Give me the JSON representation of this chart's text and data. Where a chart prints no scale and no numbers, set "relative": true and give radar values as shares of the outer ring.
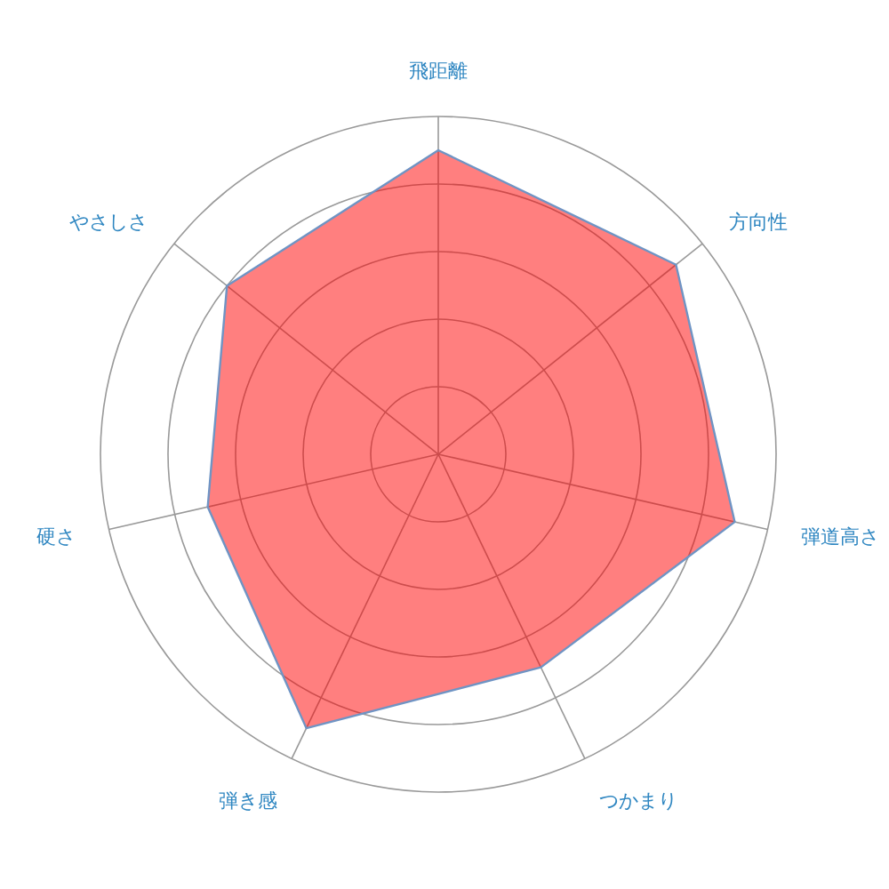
{
  "chart_data": {
    "type": "radar",
    "relative": true,
    "grid": true,
    "categories": [
      "飛距離",
      "方向性",
      "弾道高さ",
      "つかまり",
      "弾き感",
      "硬さ",
      "やさしさ"
    ],
    "series": [
      {
        "color": "#ff0000",
        "values": [
          0.9,
          0.9,
          0.9,
          0.7,
          0.9,
          0.7,
          0.8
        ]
      }
    ]
  }
}
